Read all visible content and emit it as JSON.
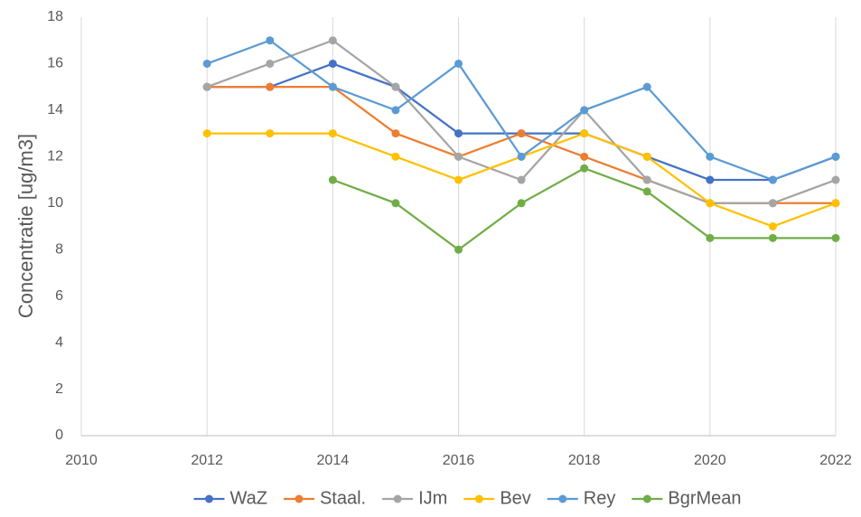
{
  "chart_data": {
    "type": "line",
    "y_label": "Concentratie [ug/m3]",
    "x": [
      2012,
      2013,
      2014,
      2015,
      2016,
      2017,
      2018,
      2019,
      2020,
      2021,
      2022
    ],
    "series": [
      {
        "name": "WaZ",
        "color": "#4472c4",
        "values": [
          15,
          15,
          16,
          15,
          13,
          13,
          13,
          12,
          11,
          11,
          12
        ]
      },
      {
        "name": "Staal.",
        "color": "#ed7d31",
        "values": [
          15,
          15,
          15,
          13,
          12,
          13,
          12,
          11,
          10,
          10,
          10
        ]
      },
      {
        "name": "IJm",
        "color": "#a5a5a5",
        "values": [
          15,
          16,
          17,
          15,
          12,
          11,
          14,
          11,
          10,
          10,
          11
        ]
      },
      {
        "name": "Bev",
        "color": "#ffc000",
        "values": [
          13,
          13,
          13,
          12,
          11,
          12,
          13,
          12,
          10,
          9,
          10
        ]
      },
      {
        "name": "Rey",
        "color": "#5b9bd5",
        "values": [
          16,
          17,
          15,
          14,
          16,
          12,
          14,
          15,
          12,
          11,
          12
        ]
      },
      {
        "name": "BgrMean",
        "color": "#70ad47",
        "values": [
          null,
          null,
          11,
          10,
          8,
          10,
          11.5,
          10.5,
          8.5,
          8.5,
          8.5
        ]
      }
    ],
    "xlim": [
      2010,
      2022
    ],
    "xticks": [
      2010,
      2012,
      2014,
      2016,
      2018,
      2020,
      2022
    ],
    "ylim": [
      0,
      18
    ],
    "yticks": [
      0,
      2,
      4,
      6,
      8,
      10,
      12,
      14,
      16,
      18
    ],
    "grid": "x",
    "legend": "bottom"
  }
}
